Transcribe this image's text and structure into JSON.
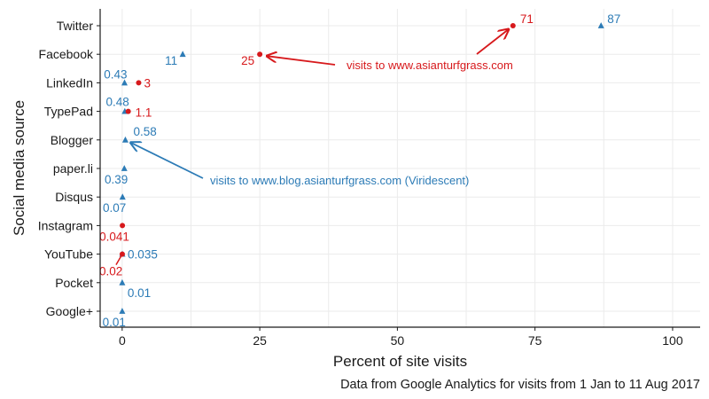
{
  "chart_data": {
    "type": "scatter",
    "title": "",
    "xlabel": "Percent of site visits",
    "ylabel": "Social media source",
    "caption": "Data from Google Analytics for visits from 1 Jan to 11 Aug 2017",
    "xlim": [
      -4,
      105
    ],
    "xticks": [
      0,
      25,
      50,
      75,
      100
    ],
    "grid": true,
    "legend": "none",
    "categories": [
      "Twitter",
      "Facebook",
      "LinkedIn",
      "TypePad",
      "Blogger",
      "paper.li",
      "Disqus",
      "Instagram",
      "YouTube",
      "Pocket",
      "Google+"
    ],
    "series": [
      {
        "color": "#2c7bb6",
        "marker": "triangle",
        "points": [
          {
            "y": "Twitter",
            "x": 87,
            "label": "87"
          },
          {
            "y": "Facebook",
            "x": 11,
            "label": "11"
          },
          {
            "y": "LinkedIn",
            "x": 0.43,
            "label": "0.43"
          },
          {
            "y": "TypePad",
            "x": 0.48,
            "label": "0.48"
          },
          {
            "y": "Blogger",
            "x": 0.58,
            "label": "0.58"
          },
          {
            "y": "paper.li",
            "x": 0.39,
            "label": "0.39"
          },
          {
            "y": "Disqus",
            "x": 0.07,
            "label": "0.07"
          },
          {
            "y": "YouTube",
            "x": 0.035,
            "label": "0.035"
          },
          {
            "y": "Pocket",
            "x": 0.01,
            "label": "0.01"
          },
          {
            "y": "Google+",
            "x": 0.01,
            "label": "0.01"
          }
        ]
      },
      {
        "color": "#d7191c",
        "marker": "circle",
        "points": [
          {
            "y": "Twitter",
            "x": 71,
            "label": "71"
          },
          {
            "y": "Facebook",
            "x": 25,
            "label": "25"
          },
          {
            "y": "LinkedIn",
            "x": 3,
            "label": "3"
          },
          {
            "y": "TypePad",
            "x": 1.1,
            "label": "1.1"
          },
          {
            "y": "Instagram",
            "x": 0.041,
            "label": "0.041"
          },
          {
            "y": "YouTube",
            "x": 0.02,
            "label": "0.02"
          }
        ]
      }
    ],
    "annotations": [
      {
        "text": "visits to www.asianturfgrass.com",
        "color": "#d7191c"
      },
      {
        "text": "visits to www.blog.asianturfgrass.com (Viridescent)",
        "color": "#2c7bb6"
      }
    ]
  }
}
